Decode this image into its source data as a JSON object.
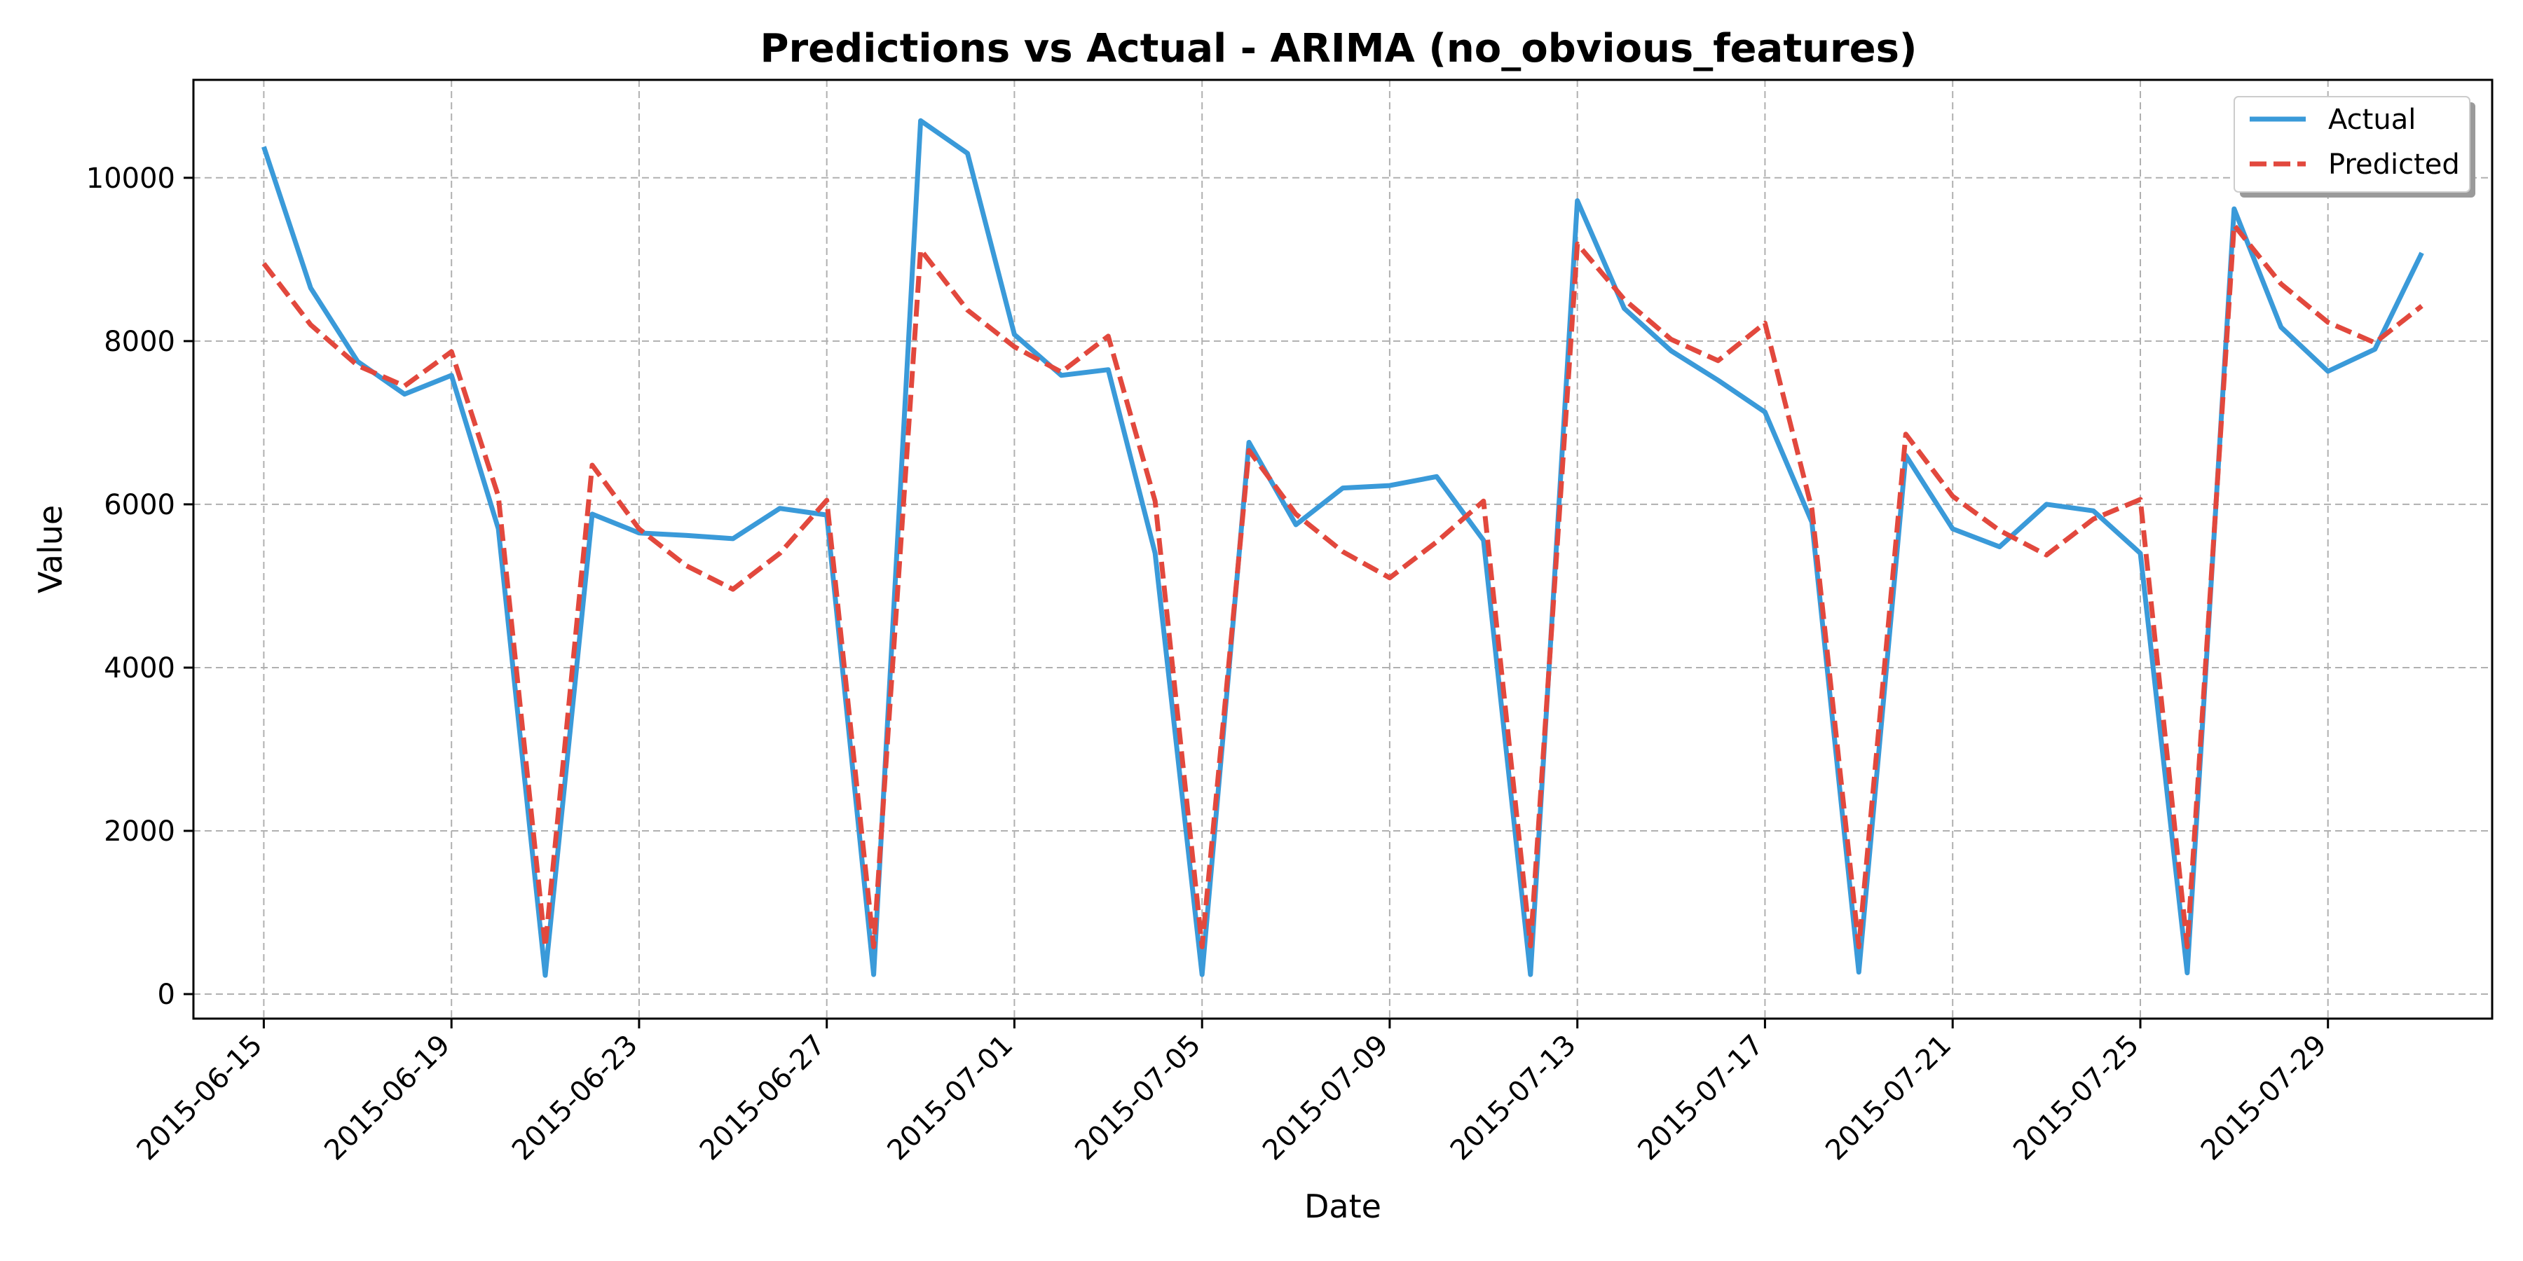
{
  "chart_data": {
    "type": "line",
    "title": "Predictions vs Actual - ARIMA (no_obvious_features)",
    "xlabel": "Date",
    "ylabel": "Value",
    "x_range": [
      "2015-06-13T12:00",
      "2015-08-01T12:00"
    ],
    "ylim": [
      -300,
      11200
    ],
    "yticks": [
      0,
      2000,
      4000,
      6000,
      8000,
      10000
    ],
    "xticks": [
      "2015-06-15",
      "2015-06-19",
      "2015-06-23",
      "2015-06-27",
      "2015-07-01",
      "2015-07-05",
      "2015-07-09",
      "2015-07-13",
      "2015-07-17",
      "2015-07-21",
      "2015-07-25",
      "2015-07-29"
    ],
    "grid": true,
    "legend_position": "top-right",
    "x": [
      "2015-06-15",
      "2015-06-16",
      "2015-06-17",
      "2015-06-18",
      "2015-06-19",
      "2015-06-20",
      "2015-06-21",
      "2015-06-22",
      "2015-06-23",
      "2015-06-24",
      "2015-06-25",
      "2015-06-26",
      "2015-06-27",
      "2015-06-28",
      "2015-06-29",
      "2015-06-30",
      "2015-07-01",
      "2015-07-02",
      "2015-07-03",
      "2015-07-04",
      "2015-07-05",
      "2015-07-06",
      "2015-07-07",
      "2015-07-08",
      "2015-07-09",
      "2015-07-10",
      "2015-07-11",
      "2015-07-12",
      "2015-07-13",
      "2015-07-14",
      "2015-07-15",
      "2015-07-16",
      "2015-07-17",
      "2015-07-18",
      "2015-07-19",
      "2015-07-20",
      "2015-07-21",
      "2015-07-22",
      "2015-07-23",
      "2015-07-24",
      "2015-07-25",
      "2015-07-26",
      "2015-07-27",
      "2015-07-28",
      "2015-07-29",
      "2015-07-30",
      "2015-07-31"
    ],
    "series": [
      {
        "name": "Actual",
        "color": "#3a9ad9",
        "dash": "solid",
        "values": [
          10380,
          8650,
          7750,
          7350,
          7580,
          5700,
          230,
          5880,
          5650,
          5620,
          5580,
          5950,
          5870,
          240,
          10700,
          10300,
          8080,
          7580,
          7650,
          5400,
          240,
          6760,
          5750,
          6200,
          6230,
          6340,
          5560,
          240,
          9720,
          8400,
          7880,
          7520,
          7130,
          5780,
          270,
          6600,
          5700,
          5480,
          6000,
          5920,
          5400,
          260,
          9620,
          8170,
          7630,
          7900,
          9080
        ]
      },
      {
        "name": "Predicted",
        "color": "#e2483d",
        "dash": "dashed",
        "values": [
          8950,
          8200,
          7700,
          7450,
          7870,
          6100,
          580,
          6480,
          5700,
          5250,
          4960,
          5400,
          6050,
          580,
          9120,
          8380,
          7930,
          7620,
          8060,
          6040,
          580,
          6660,
          5880,
          5420,
          5100,
          5540,
          6040,
          590,
          9190,
          8510,
          8020,
          7760,
          8220,
          5940,
          580,
          6860,
          6100,
          5680,
          5380,
          5820,
          6060,
          580,
          9420,
          8700,
          8230,
          7980,
          8430
        ]
      }
    ]
  }
}
